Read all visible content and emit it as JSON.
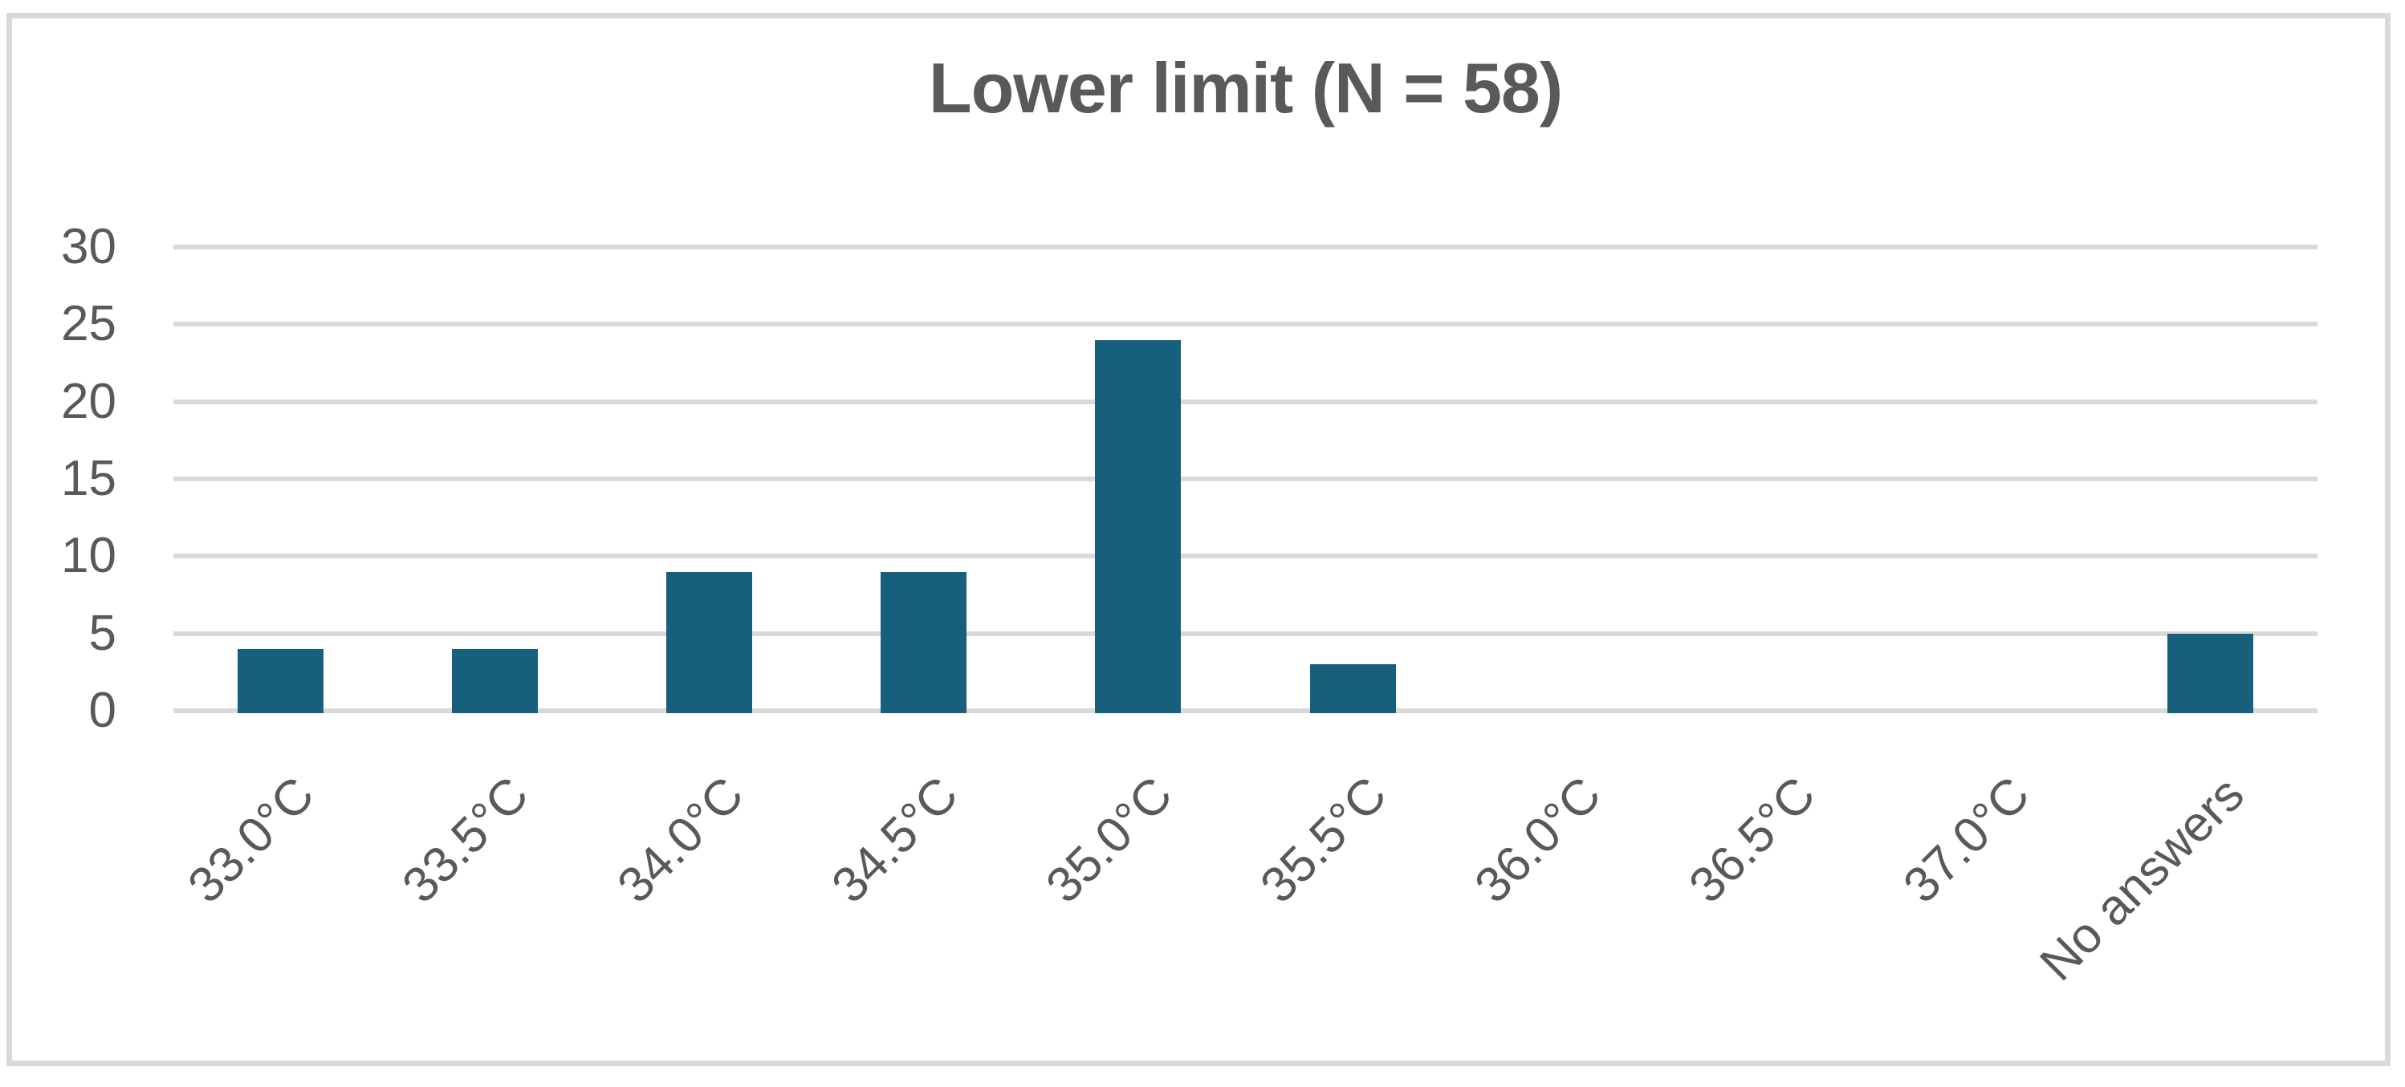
{
  "figure": {
    "title": "Lower limit (N = 58)"
  },
  "chart_data": {
    "type": "bar",
    "title": "Lower limit (N = 58)",
    "categories": [
      "33.0°C",
      "33.5°C",
      "34.0°C",
      "34.5°C",
      "35.0°C",
      "35.5°C",
      "36.0°C",
      "36.5°C",
      "37.0°C",
      "No answers"
    ],
    "values": [
      4,
      4,
      9,
      9,
      24,
      3,
      0,
      0,
      0,
      5
    ],
    "xlabel": "",
    "ylabel": "",
    "ylim": [
      0,
      30
    ],
    "yticks": [
      0,
      5,
      10,
      15,
      20,
      25,
      30
    ],
    "grid": true,
    "legend_position": "none",
    "bar_gap_ratio": 0.6
  },
  "colors": {
    "bar": "#16607E",
    "gridline": "#D9D9D9",
    "frame_border": "#D9D9D9",
    "text": "#595959",
    "background": "#FFFFFF"
  }
}
